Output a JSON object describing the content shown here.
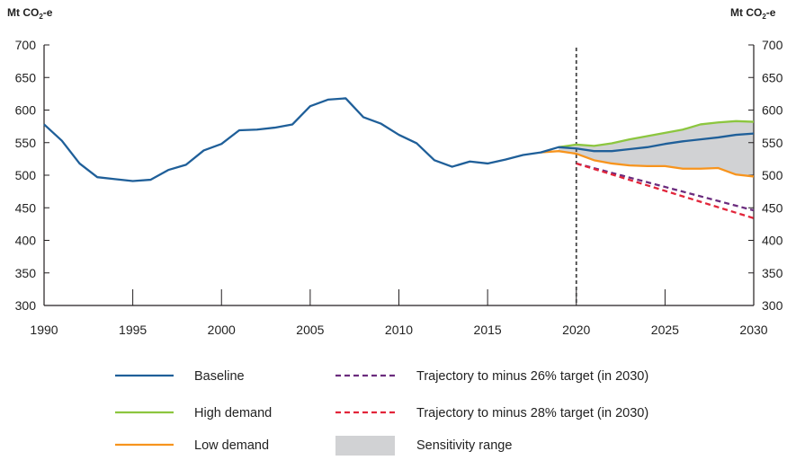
{
  "chart_data": {
    "type": "line",
    "y_unit_label_left": "Mt CO",
    "y_unit_label_right": "Mt CO",
    "y_unit_subscript": "2",
    "y_unit_suffix": "-e",
    "xlim": [
      1990,
      2030
    ],
    "ylim": [
      300,
      700
    ],
    "x_ticks": [
      1990,
      1995,
      2000,
      2005,
      2010,
      2015,
      2020,
      2025,
      2030
    ],
    "y_ticks": [
      300,
      350,
      400,
      450,
      500,
      550,
      600,
      650,
      700
    ],
    "projection_divider_year": 2020,
    "series": [
      {
        "name": "Baseline",
        "color": "#1f5f99",
        "style": "solid",
        "x": [
          1990,
          1991,
          1992,
          1993,
          1994,
          1995,
          1996,
          1997,
          1998,
          1999,
          2000,
          2001,
          2002,
          2003,
          2004,
          2005,
          2006,
          2007,
          2008,
          2009,
          2010,
          2011,
          2012,
          2013,
          2014,
          2015,
          2016,
          2017,
          2018,
          2019,
          2020,
          2021,
          2022,
          2023,
          2024,
          2025,
          2026,
          2027,
          2028,
          2029,
          2030
        ],
        "values": [
          578,
          553,
          518,
          497,
          494,
          491,
          493,
          508,
          516,
          538,
          548,
          569,
          570,
          573,
          578,
          606,
          616,
          618,
          589,
          579,
          562,
          549,
          523,
          513,
          521,
          518,
          524,
          531,
          535,
          543,
          541,
          537,
          537,
          540,
          543,
          548,
          552,
          555,
          558,
          562,
          564
        ]
      },
      {
        "name": "High demand",
        "color": "#8cc63f",
        "style": "solid",
        "x": [
          2019,
          2020,
          2021,
          2022,
          2023,
          2024,
          2025,
          2026,
          2027,
          2028,
          2029,
          2030
        ],
        "values": [
          543,
          547,
          545,
          549,
          555,
          560,
          565,
          570,
          578,
          581,
          583,
          582
        ]
      },
      {
        "name": "Low demand",
        "color": "#f7941d",
        "style": "solid",
        "x": [
          2018,
          2019,
          2020,
          2021,
          2022,
          2023,
          2024,
          2025,
          2026,
          2027,
          2028,
          2029,
          2030
        ],
        "values": [
          535,
          537,
          533,
          523,
          518,
          515,
          514,
          514,
          510,
          510,
          511,
          501,
          498
        ]
      },
      {
        "name": "Trajectory to minus 26% target (in 2030)",
        "color": "#6b2c7e",
        "style": "dashed",
        "x": [
          2020,
          2030
        ],
        "values": [
          518,
          446
        ]
      },
      {
        "name": "Trajectory to minus 28% target (in 2030)",
        "color": "#e2253a",
        "style": "dashed",
        "x": [
          2020,
          2030
        ],
        "values": [
          518,
          434
        ]
      }
    ],
    "sensitivity_range": {
      "name": "Sensitivity range",
      "color": "#d1d2d4",
      "x": [
        2019,
        2020,
        2021,
        2022,
        2023,
        2024,
        2025,
        2026,
        2027,
        2028,
        2029,
        2030
      ],
      "upper": [
        543,
        547,
        545,
        549,
        555,
        560,
        565,
        570,
        578,
        581,
        583,
        582
      ],
      "lower": [
        537,
        533,
        523,
        518,
        515,
        514,
        514,
        510,
        510,
        511,
        501,
        498
      ]
    },
    "legend": [
      {
        "label": "Baseline",
        "kind": "line",
        "color": "#1f5f99"
      },
      {
        "label": "High demand",
        "kind": "line",
        "color": "#8cc63f"
      },
      {
        "label": "Low demand",
        "kind": "line",
        "color": "#f7941d"
      },
      {
        "label": "Trajectory to minus 26% target (in 2030)",
        "kind": "dashed",
        "color": "#6b2c7e"
      },
      {
        "label": "Trajectory to minus 28% target (in 2030)",
        "kind": "dashed",
        "color": "#e2253a"
      },
      {
        "label": "Sensitivity range",
        "kind": "patch",
        "color": "#d1d2d4"
      }
    ],
    "grid": false,
    "legend_position": "bottom"
  }
}
